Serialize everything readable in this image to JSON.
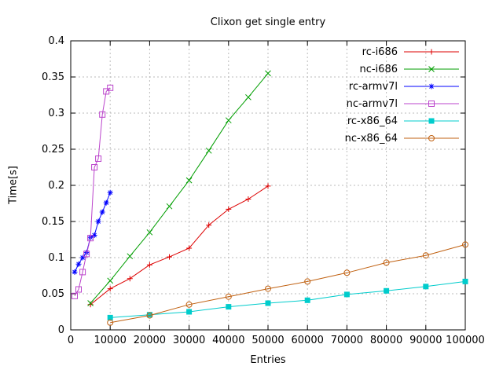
{
  "chart_data": {
    "type": "line",
    "title": "Clixon get single entry",
    "xlabel": "Entries",
    "ylabel": "Time[s]",
    "xlim": [
      0,
      100000
    ],
    "ylim": [
      0,
      0.4
    ],
    "grid": true,
    "legend_position": "top-right-inside",
    "background": "#ffffff",
    "grid_color": "#bbbbbb",
    "xticks": {
      "values": [
        0,
        10000,
        20000,
        30000,
        40000,
        50000,
        60000,
        70000,
        80000,
        90000,
        100000
      ],
      "labels": [
        "0",
        "10000",
        "20000",
        "30000",
        "40000",
        "50000",
        "60000",
        "70000",
        "80000",
        "90000",
        "100000"
      ]
    },
    "yticks": {
      "values": [
        0,
        0.05,
        0.1,
        0.15,
        0.2,
        0.25,
        0.3,
        0.35,
        0.4
      ],
      "labels": [
        "0",
        "0.05",
        "0.1",
        "0.15",
        "0.2",
        "0.25",
        "0.3",
        "0.35",
        "0.4"
      ]
    },
    "series": [
      {
        "name": "rc-i686",
        "color": "#dd0000",
        "marker": "plus",
        "x": [
          5000,
          10000,
          15000,
          20000,
          25000,
          30000,
          35000,
          40000,
          45000,
          50000
        ],
        "y": [
          0.035,
          0.057,
          0.071,
          0.09,
          0.101,
          0.113,
          0.145,
          0.167,
          0.181,
          0.199
        ]
      },
      {
        "name": "nc-i686",
        "color": "#009e00",
        "marker": "cross",
        "x": [
          5000,
          10000,
          15000,
          20000,
          25000,
          30000,
          35000,
          40000,
          45000,
          50000
        ],
        "y": [
          0.037,
          0.068,
          0.102,
          0.135,
          0.171,
          0.207,
          0.248,
          0.29,
          0.322,
          0.355
        ]
      },
      {
        "name": "rc-armv7l",
        "color": "#0000ff",
        "marker": "asterisk",
        "x": [
          1000,
          2000,
          3000,
          4000,
          5000,
          6000,
          7000,
          8000,
          9000,
          10000
        ],
        "y": [
          0.08,
          0.091,
          0.1,
          0.107,
          0.128,
          0.131,
          0.15,
          0.163,
          0.176,
          0.19
        ]
      },
      {
        "name": "nc-armv7l",
        "color": "#bb44cc",
        "marker": "square-open",
        "x": [
          1000,
          2000,
          3000,
          4000,
          5000,
          6000,
          7000,
          8000,
          9000,
          10000
        ],
        "y": [
          0.047,
          0.056,
          0.08,
          0.105,
          0.127,
          0.225,
          0.237,
          0.298,
          0.33,
          0.335
        ]
      },
      {
        "name": "rc-x86_64",
        "color": "#00cccc",
        "marker": "square-filled",
        "x": [
          10000,
          20000,
          30000,
          40000,
          50000,
          60000,
          70000,
          80000,
          90000,
          100000
        ],
        "y": [
          0.017,
          0.021,
          0.025,
          0.032,
          0.037,
          0.041,
          0.049,
          0.054,
          0.06,
          0.067
        ]
      },
      {
        "name": "nc-x86_64",
        "color": "#c06010",
        "marker": "circle-open",
        "x": [
          10000,
          20000,
          30000,
          40000,
          50000,
          60000,
          70000,
          80000,
          90000,
          100000
        ],
        "y": [
          0.01,
          0.02,
          0.035,
          0.046,
          0.057,
          0.067,
          0.079,
          0.093,
          0.103,
          0.118
        ]
      }
    ]
  }
}
